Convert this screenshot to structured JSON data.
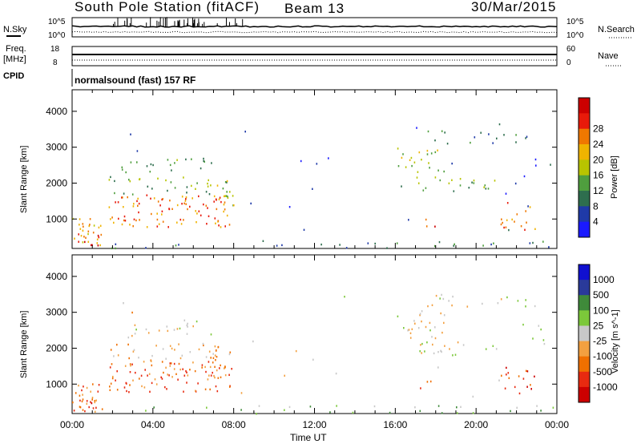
{
  "header": {
    "station": "South Pole Station (fitACF)",
    "beam": "Beam 13",
    "date": "30/Mar/2015"
  },
  "side_labels": {
    "nsky": "N.Sky",
    "freq_line1": "Freq.",
    "freq_line2": "[MHz]",
    "cpid": "CPID",
    "nsearch": "N.Search",
    "nave": "Nave",
    "nsky_ticks": [
      "10^5",
      "10^0"
    ],
    "nsearch_ticks": [
      "10^5",
      "10^0"
    ],
    "freq_ticks": [
      "18",
      "8"
    ],
    "nave_ticks": [
      "60",
      "0"
    ]
  },
  "cpid_text": "normalsound (fast) 157 RF",
  "colors": {
    "power": [
      "#1a1aff",
      "#1f3aa8",
      "#2e6e4e",
      "#4f9e3e",
      "#b8c400",
      "#f0b400",
      "#f07800",
      "#e81a0a",
      "#cc0000"
    ],
    "velocity": [
      "#cc0000",
      "#e82a10",
      "#f07000",
      "#f3a040",
      "#c8c8c8",
      "#7cc83a",
      "#3f8a3a",
      "#2a3a9a",
      "#1010d0"
    ]
  },
  "chart_data": [
    {
      "type": "heatmap",
      "name": "power",
      "ylabel": "Slant Range [km]",
      "ylim": [
        180,
        4600
      ],
      "yticks": [
        "1000",
        "2000",
        "3000",
        "4000"
      ],
      "xlim": [
        0,
        24
      ],
      "colorbar_label": "Power [dB]",
      "colorbar_ticks": [
        "4",
        "8",
        "12",
        "16",
        "20",
        "24",
        "28"
      ]
    },
    {
      "type": "heatmap",
      "name": "velocity",
      "ylabel": "Slant Range [km]",
      "ylim": [
        180,
        4600
      ],
      "yticks": [
        "1000",
        "2000",
        "3000",
        "4000"
      ],
      "xlim": [
        0,
        24
      ],
      "xlabel": "Time UT",
      "xticks": [
        "00:00",
        "04:00",
        "08:00",
        "12:00",
        "16:00",
        "20:00",
        "00:00"
      ],
      "colorbar_label": "Velocity [m s^-1]",
      "colorbar_ticks": [
        "1000",
        "500",
        "100",
        "25",
        "-25",
        "-100",
        "-500",
        "-1000"
      ]
    }
  ]
}
